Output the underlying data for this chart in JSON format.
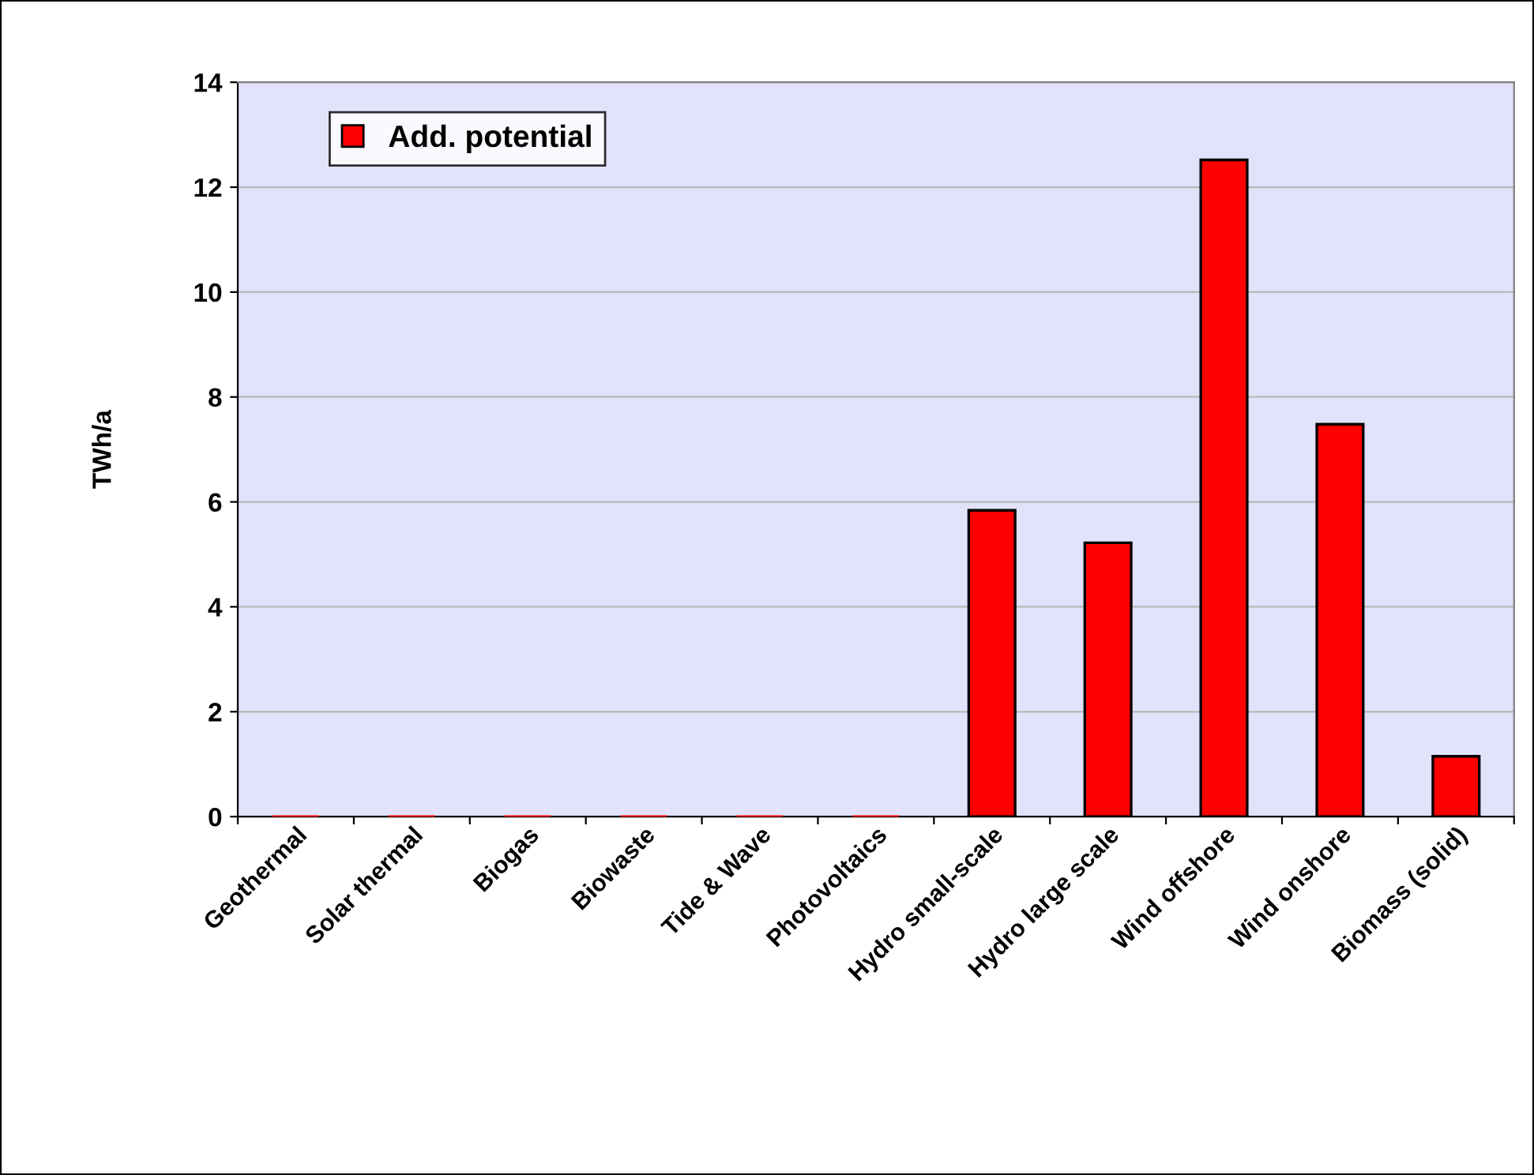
{
  "chart_data": {
    "type": "bar",
    "ylabel": "TWh/a",
    "categories": [
      "Geothermal",
      "Solar thermal",
      "Biogas",
      "Biowaste",
      "Tide & Wave",
      "Photovoltaics",
      "Hydro small-scale",
      "Hydro large scale",
      "Wind offshore",
      "Wind onshore",
      "Biomass (solid)"
    ],
    "series": [
      {
        "name": "Add. potential",
        "color": "#ff0000",
        "values": [
          0,
          0,
          0,
          0,
          0,
          0,
          5.84,
          5.22,
          12.52,
          7.48,
          1.15
        ]
      }
    ],
    "ylim": [
      0,
      14
    ],
    "yticks": [
      0,
      2,
      4,
      6,
      8,
      10,
      12,
      14
    ],
    "grid": "y",
    "legend": "top left"
  }
}
